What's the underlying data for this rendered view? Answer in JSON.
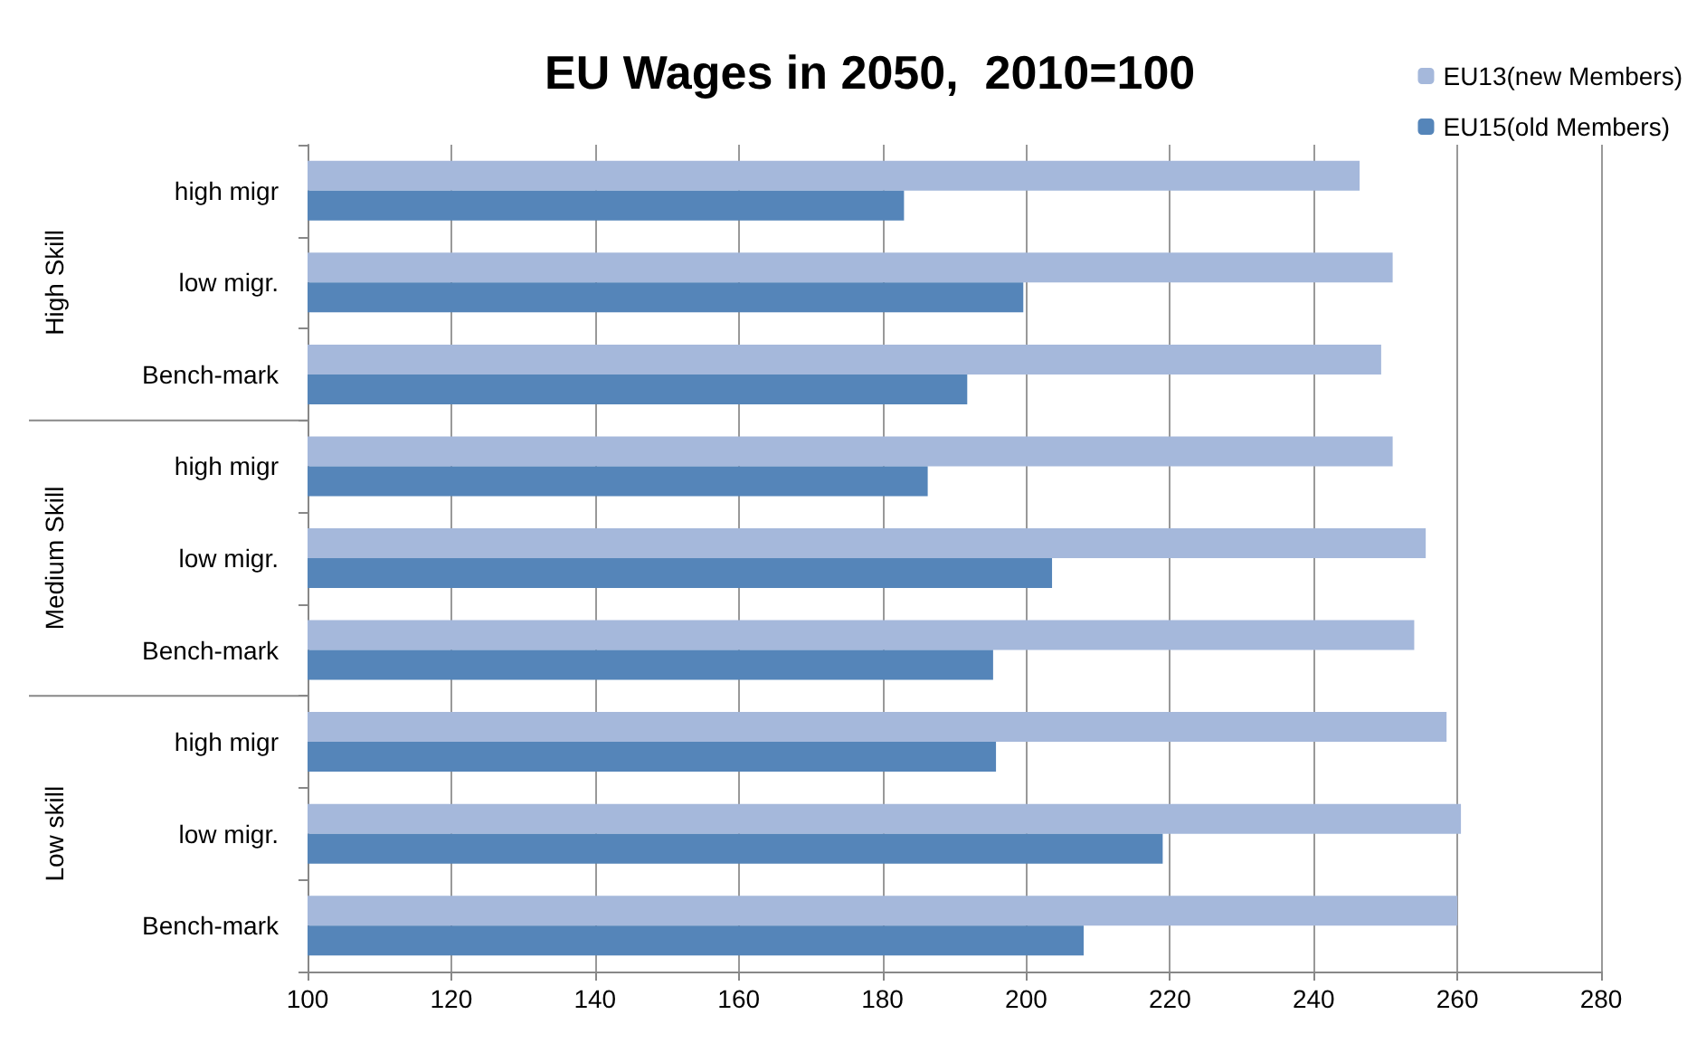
{
  "chart_data": {
    "type": "bar",
    "orientation": "horizontal",
    "title": "EU Wages in 2050,  2010=100",
    "categories": [
      "high migr",
      "low migr.",
      "Bench-mark",
      "high migr",
      "low migr.",
      "Bench-mark",
      "high migr",
      "low migr.",
      "Bench-mark"
    ],
    "annotations": [
      "High Skill",
      "Medium Skill",
      "Low skill"
    ],
    "series": [
      {
        "name": "EU13(new Members)",
        "color": "#a5b8db",
        "values": [
          246.4,
          251,
          249.4,
          251,
          255.6,
          254,
          258.5,
          260.5,
          260
        ]
      },
      {
        "name": "EU15(old Members)",
        "color": "#5585b9",
        "values": [
          183,
          199.6,
          191.8,
          186.3,
          203.6,
          195.4,
          195.8,
          219,
          208
        ]
      }
    ],
    "xlim": [
      100,
      280
    ],
    "xticks": [
      100,
      120,
      140,
      160,
      180,
      200,
      220,
      240,
      260,
      280
    ],
    "grid": "x",
    "legend": "top right"
  }
}
